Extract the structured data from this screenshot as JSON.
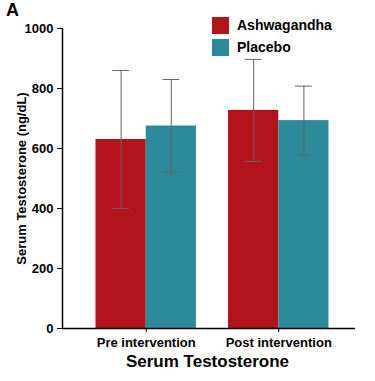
{
  "chart_data": {
    "type": "bar",
    "annotations": [
      "A"
    ],
    "x_label": "Serum Testosterone",
    "y_label": "Serum Testosterone (ng/dL)",
    "categories": [
      "Pre intervention",
      "Post intervention"
    ],
    "series": [
      {
        "name": "Ashwagandha",
        "color": "#b3141c",
        "values": [
          630,
          727
        ],
        "errors": [
          230,
          170
        ]
      },
      {
        "name": "Placebo",
        "color": "#2c8a9b",
        "values": [
          675,
          693
        ],
        "errors": [
          155,
          115
        ]
      }
    ],
    "ylim": [
      0,
      1000
    ],
    "yticks": [
      0,
      200,
      400,
      600,
      800,
      1000
    ],
    "legend": "top-right",
    "grid": false
  }
}
